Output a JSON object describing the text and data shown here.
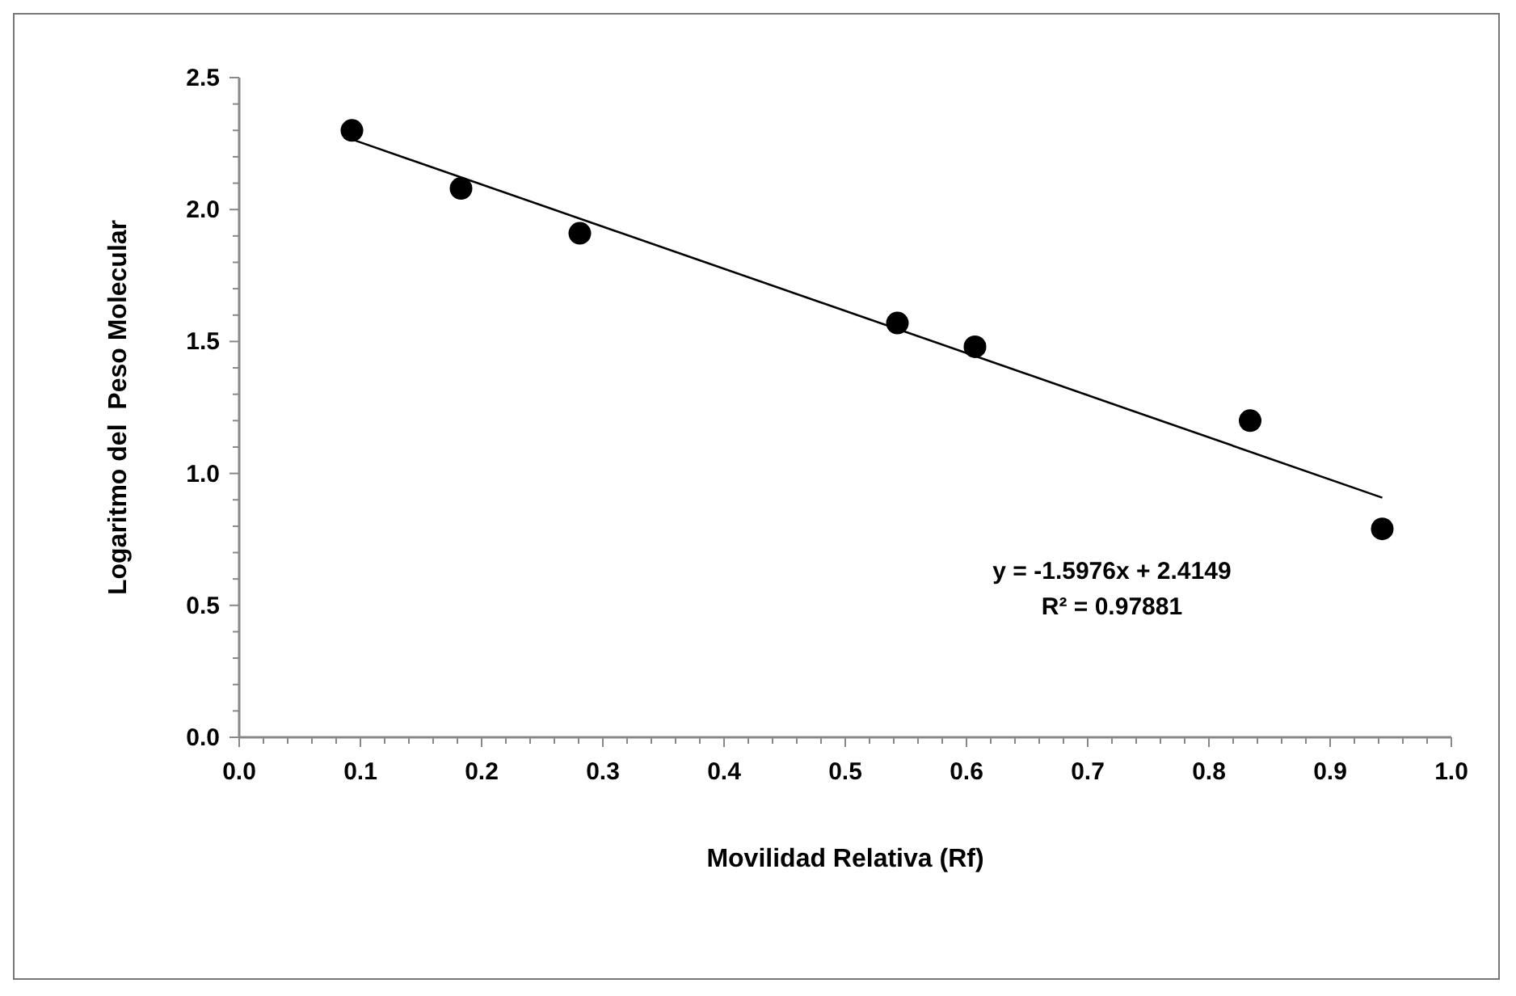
{
  "chart_data": {
    "type": "scatter",
    "xlabel": "Movilidad Relativa (Rf)",
    "ylabel": "Logaritmo del  Peso Molecular",
    "marker": "circle",
    "grid": false,
    "series": [
      {
        "color": "#000000",
        "x": [
          0.093,
          0.183,
          0.281,
          0.543,
          0.607,
          0.834,
          0.943
        ],
        "values": [
          2.3,
          2.08,
          1.91,
          1.57,
          1.48,
          1.2,
          0.79
        ]
      },
      {
        "type": "line",
        "color": "#000000",
        "marker": "none",
        "x": [
          0.093,
          0.943
        ],
        "values": [
          2.266,
          0.908
        ]
      }
    ],
    "annotations": [
      "y = -1.5976x + 2.4149",
      "R² = 0.97881"
    ],
    "xlim": [
      0,
      1
    ],
    "ylim": [
      0,
      2.5
    ],
    "xticks": [
      {
        "value": 0,
        "label": "0.0"
      },
      {
        "value": 0.02,
        "label": null
      },
      {
        "value": 0.04,
        "label": null
      },
      {
        "value": 0.06,
        "label": null
      },
      {
        "value": 0.08,
        "label": null
      },
      0.1,
      {
        "value": 0.12,
        "label": null
      },
      {
        "value": 0.14,
        "label": null
      },
      {
        "value": 0.16,
        "label": null
      },
      {
        "value": 0.18,
        "label": null
      },
      0.2,
      {
        "value": 0.22,
        "label": null
      },
      {
        "value": 0.24,
        "label": null
      },
      {
        "value": 0.26,
        "label": null
      },
      {
        "value": 0.28,
        "label": null
      },
      0.3,
      {
        "value": 0.32,
        "label": null
      },
      {
        "value": 0.34,
        "label": null
      },
      {
        "value": 0.36,
        "label": null
      },
      {
        "value": 0.38,
        "label": null
      },
      0.4,
      {
        "value": 0.42,
        "label": null
      },
      {
        "value": 0.44,
        "label": null
      },
      {
        "value": 0.46,
        "label": null
      },
      {
        "value": 0.48,
        "label": null
      },
      0.5,
      {
        "value": 0.52,
        "label": null
      },
      {
        "value": 0.54,
        "label": null
      },
      {
        "value": 0.56,
        "label": null
      },
      {
        "value": 0.58,
        "label": null
      },
      0.6,
      {
        "value": 0.62,
        "label": null
      },
      {
        "value": 0.64,
        "label": null
      },
      {
        "value": 0.66,
        "label": null
      },
      {
        "value": 0.68,
        "label": null
      },
      0.7,
      {
        "value": 0.72,
        "label": null
      },
      {
        "value": 0.74,
        "label": null
      },
      {
        "value": 0.76,
        "label": null
      },
      {
        "value": 0.78,
        "label": null
      },
      0.8,
      {
        "value": 0.82,
        "label": null
      },
      {
        "value": 0.84,
        "label": null
      },
      {
        "value": 0.86,
        "label": null
      },
      {
        "value": 0.88,
        "label": null
      },
      0.9,
      {
        "value": 0.92,
        "label": null
      },
      {
        "value": 0.94,
        "label": null
      },
      {
        "value": 0.96,
        "label": null
      },
      {
        "value": 0.98,
        "label": null
      },
      {
        "value": 1,
        "label": "1.0"
      }
    ],
    "yticks": [
      {
        "value": 0,
        "label": "0.0"
      },
      {
        "value": 0.1,
        "label": null
      },
      {
        "value": 0.2,
        "label": null
      },
      {
        "value": 0.3,
        "label": null
      },
      {
        "value": 0.4,
        "label": null
      },
      0.5,
      {
        "value": 0.6,
        "label": null
      },
      {
        "value": 0.7,
        "label": null
      },
      {
        "value": 0.8,
        "label": null
      },
      {
        "value": 0.9,
        "label": null
      },
      {
        "value": 1,
        "label": "1.0"
      },
      {
        "value": 1.1,
        "label": null
      },
      {
        "value": 1.2,
        "label": null
      },
      {
        "value": 1.3,
        "label": null
      },
      {
        "value": 1.4,
        "label": null
      },
      1.5,
      {
        "value": 1.6,
        "label": null
      },
      {
        "value": 1.7,
        "label": null
      },
      {
        "value": 1.8,
        "label": null
      },
      {
        "value": 1.9,
        "label": null
      },
      {
        "value": 2,
        "label": "2.0"
      },
      {
        "value": 2.1,
        "label": null
      },
      {
        "value": 2.2,
        "label": null
      },
      {
        "value": 2.3,
        "label": null
      },
      {
        "value": 2.4,
        "label": null
      },
      2.5
    ]
  }
}
